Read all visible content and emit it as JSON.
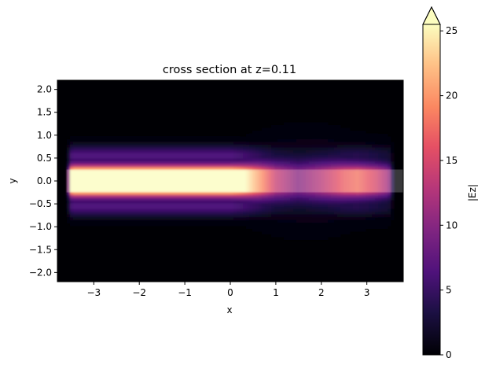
{
  "chart_data": {
    "type": "heatmap",
    "title": "cross section at z=0.11",
    "xlabel": "x",
    "ylabel": "y",
    "xlim": [
      -3.8,
      3.8
    ],
    "ylim": [
      -2.2,
      2.2
    ],
    "x_ticks": [
      -3,
      -2,
      -1,
      0,
      1,
      2,
      3
    ],
    "y_ticks": [
      -2.0,
      -1.5,
      -1.0,
      -0.5,
      0.0,
      0.5,
      1.0,
      1.5,
      2.0
    ],
    "x_tick_labels": [
      "−3",
      "−2",
      "−1",
      "0",
      "1",
      "2",
      "3"
    ],
    "y_tick_labels": [
      "−2.0",
      "−1.5",
      "−1.0",
      "−0.5",
      "0.0",
      "0.5",
      "1.0",
      "1.5",
      "2.0"
    ],
    "colorbar": {
      "label": "|Ez|",
      "min": 0,
      "max": 25.5,
      "extend": "max",
      "ticks": [
        0,
        5,
        10,
        15,
        20,
        25
      ],
      "tick_labels": [
        "0",
        "5",
        "10",
        "15",
        "20",
        "25"
      ],
      "colormap": "magma"
    },
    "waveguide_core": {
      "x_range": [
        -3.6,
        3.8
      ],
      "y_range": [
        -0.25,
        0.25
      ],
      "overlay_color": "#ffffff",
      "overlay_opacity": 0.22
    },
    "field_profile": {
      "axis": "x",
      "x": [
        -3.6,
        -3.0,
        -2.0,
        -1.0,
        -0.5,
        0.0,
        0.3,
        0.6,
        1.0,
        1.5,
        2.0,
        2.5,
        2.8,
        3.2,
        3.6
      ],
      "peak_Ez": [
        30,
        30,
        30,
        30,
        30,
        30,
        26,
        21,
        14,
        10,
        13,
        17,
        18,
        15,
        10
      ],
      "decay_length_y": [
        0.13,
        0.13,
        0.13,
        0.13,
        0.13,
        0.13,
        0.15,
        0.18,
        0.22,
        0.26,
        0.24,
        0.2,
        0.18,
        0.18,
        0.18
      ]
    },
    "grid": false,
    "legend": "none"
  }
}
